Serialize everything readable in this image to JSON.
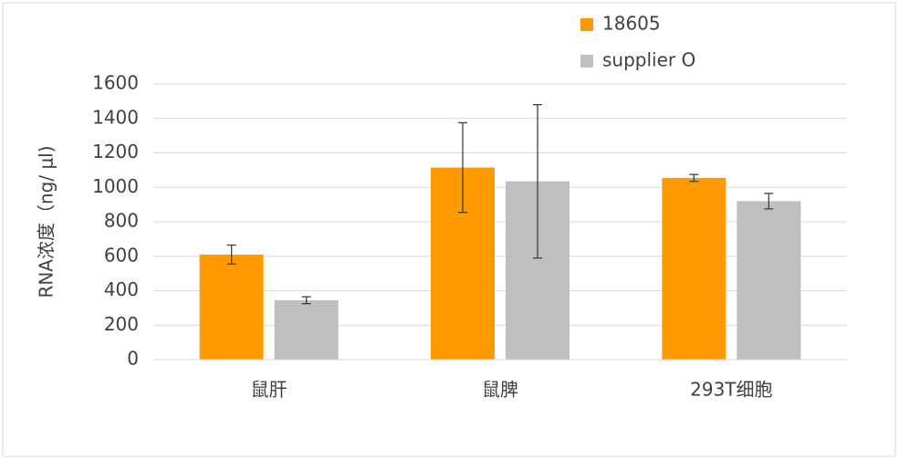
{
  "chart_data": {
    "type": "bar",
    "y_label": "RNA浓度（ng/ μl)",
    "categories": [
      "鼠肝",
      "鼠脾",
      "293T细胞"
    ],
    "series": [
      {
        "name": "18605",
        "color": "#ff9900",
        "values": [
          610,
          1115,
          1055
        ],
        "errors": [
          55,
          260,
          20
        ]
      },
      {
        "name": "supplier O",
        "color": "#bfbfbf",
        "values": [
          345,
          1035,
          920
        ],
        "errors": [
          20,
          445,
          45
        ]
      }
    ],
    "ylim": [
      0,
      1600
    ],
    "yticks": [
      0,
      200,
      400,
      600,
      800,
      1000,
      1200,
      1400,
      1600
    ],
    "grid": true,
    "legend": "top"
  }
}
